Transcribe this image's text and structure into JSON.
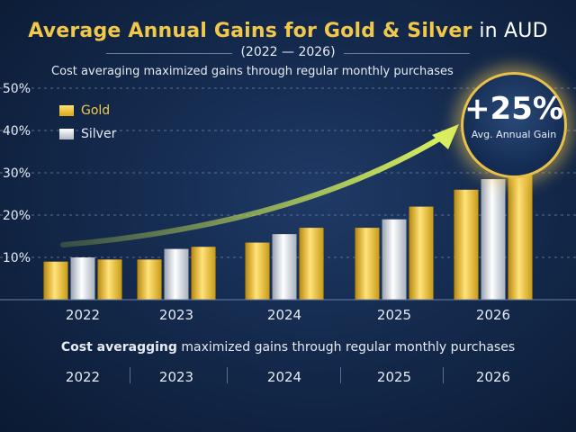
{
  "title": {
    "part1": "Average Annual Gains for Gold & Silver",
    "part2": "in AUD"
  },
  "years_range": "(2022 — 2026)",
  "subtitle": "Cost averaging maximized gains through regular monthly purchases",
  "badge": {
    "value": "+25%",
    "label": "Avg. Annual Gain"
  },
  "bottom": {
    "caption_bold": "Cost averagging",
    "caption_rest": " maximized gains through regular monthly purchases",
    "years": [
      "2022",
      "2023",
      "2024",
      "2025",
      "2026"
    ]
  },
  "colors": {
    "gold": "#f2c84b",
    "silver": "#d9dde6",
    "accent_arrow": "#c8e84a"
  },
  "chart_data": {
    "type": "bar",
    "categories": [
      "2022",
      "2023",
      "2024",
      "2025",
      "2026"
    ],
    "series": [
      {
        "name": "Gold",
        "values": [
          9,
          9.5,
          13.5,
          17,
          26
        ]
      },
      {
        "name": "Silver",
        "values": [
          10,
          12,
          15.5,
          19,
          28.5
        ]
      },
      {
        "name": "",
        "values": [
          9.5,
          12.5,
          17,
          22,
          36
        ]
      }
    ],
    "y_ticks": [
      "10%",
      "20%",
      "30%",
      "40%",
      "50%"
    ],
    "ylim": [
      0,
      50
    ],
    "grid": true,
    "legend": "top-left"
  }
}
